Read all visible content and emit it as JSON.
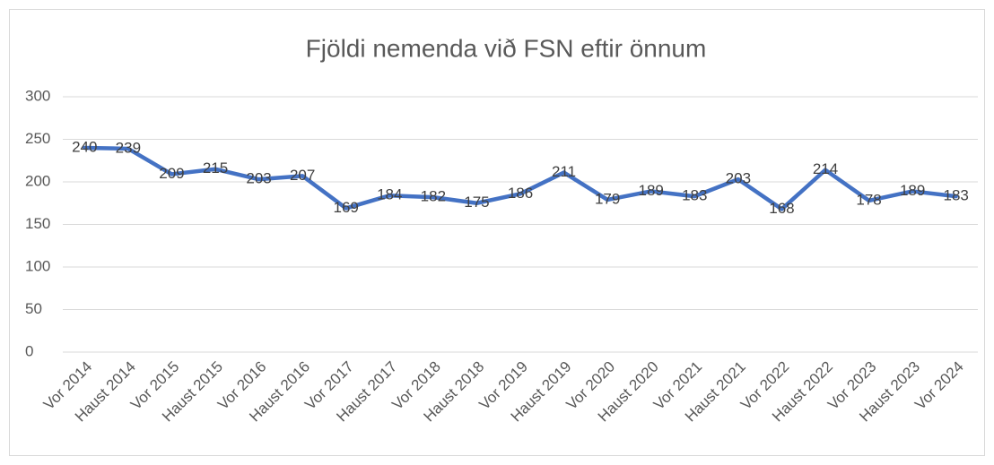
{
  "chart_data": {
    "type": "line",
    "title": "Fjöldi nemenda við FSN eftir önnum",
    "categories": [
      "Vor 2014",
      "Haust 2014",
      "Vor 2015",
      "Haust 2015",
      "Vor 2016",
      "Haust 2016",
      "Vor 2017",
      "Haust 2017",
      "Vor 2018",
      "Haust 2018",
      "Vor 2019",
      "Haust 2019",
      "Vor 2020",
      "Haust 2020",
      "Vor 2021",
      "Haust 2021",
      "Vor 2022",
      "Haust 2022",
      "Vor 2023",
      "Haust 2023",
      "Vor 2024"
    ],
    "series": [
      {
        "name": "Fjöldi nemenda",
        "color": "#4472c4",
        "values": [
          240,
          239,
          209,
          215,
          203,
          207,
          169,
          184,
          182,
          175,
          186,
          211,
          179,
          189,
          183,
          203,
          168,
          214,
          178,
          189,
          183
        ]
      }
    ],
    "ylim": [
      0,
      300
    ],
    "yticks": [
      0,
      50,
      100,
      150,
      200,
      250,
      300
    ],
    "grid": true,
    "data_labels": true
  }
}
